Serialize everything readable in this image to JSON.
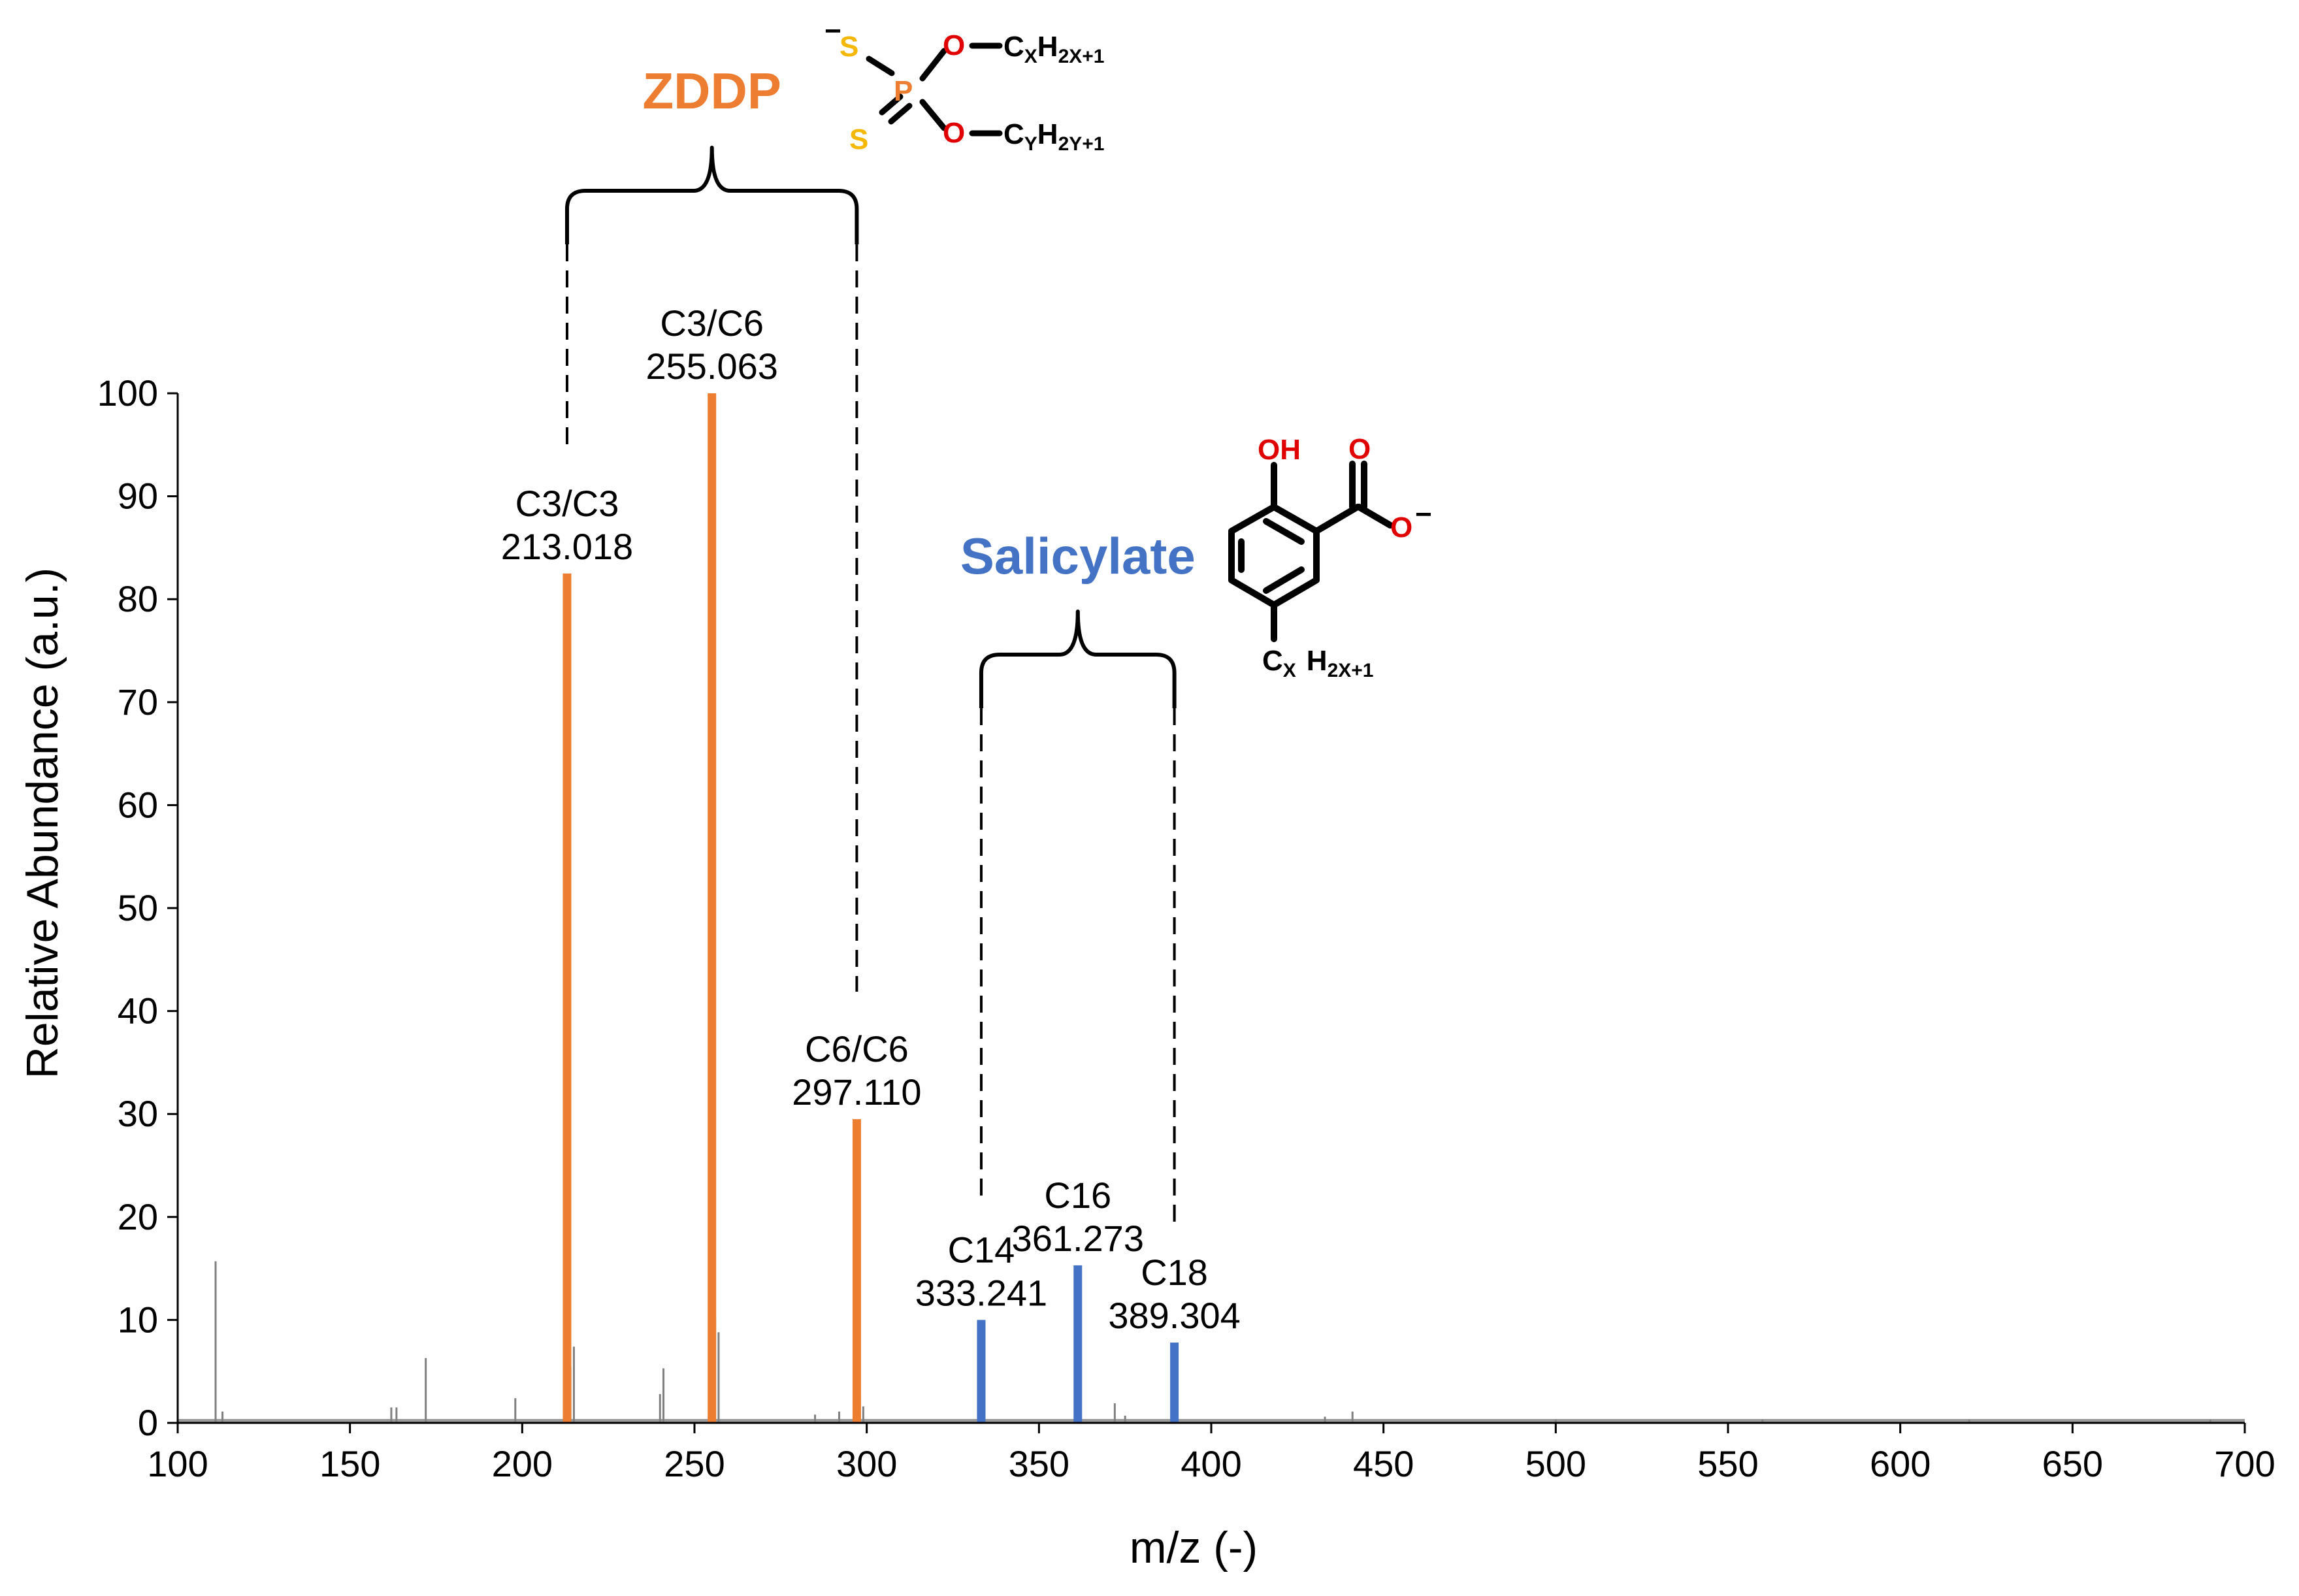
{
  "chart_data": {
    "type": "bar",
    "xlabel": "m/z (-)",
    "ylabel": "Relative Abundance (a.u.)",
    "xlim": [
      100,
      700
    ],
    "ylim": [
      0,
      100
    ],
    "xticks": [
      "100",
      "150",
      "200",
      "250",
      "300",
      "350",
      "400",
      "450",
      "500",
      "550",
      "600",
      "650",
      "700"
    ],
    "yticks": [
      "0",
      "10",
      "20",
      "30",
      "40",
      "50",
      "60",
      "70",
      "80",
      "90",
      "100"
    ],
    "grid": false,
    "colors": {
      "zddp": "#ED7D31",
      "salicylate": "#4472C4",
      "minor": "#808080"
    },
    "groups": [
      {
        "label": "ZDDP",
        "color": "#ED7D31",
        "span": [
          213.018,
          297.11
        ],
        "peaks": [
          {
            "name": "C3/C3",
            "mz": 213.018,
            "mz_label": "213.018",
            "abundance": 82.5
          },
          {
            "name": "C3/C6",
            "mz": 255.063,
            "mz_label": "255.063",
            "abundance": 100
          },
          {
            "name": "C6/C6",
            "mz": 297.11,
            "mz_label": "297.110",
            "abundance": 29.5
          }
        ]
      },
      {
        "label": "Salicylate",
        "color": "#4472C4",
        "span": [
          333.241,
          389.304
        ],
        "peaks": [
          {
            "name": "C14",
            "mz": 333.241,
            "mz_label": "333.241",
            "abundance": 10
          },
          {
            "name": "C16",
            "mz": 361.273,
            "mz_label": "361.273",
            "abundance": 15.3
          },
          {
            "name": "C18",
            "mz": 389.304,
            "mz_label": "389.304",
            "abundance": 7.8
          }
        ]
      }
    ],
    "minor_peaks": [
      {
        "mz": 111,
        "abundance": 15.7
      },
      {
        "mz": 113,
        "abundance": 1.1
      },
      {
        "mz": 162,
        "abundance": 1.5
      },
      {
        "mz": 163.5,
        "abundance": 1.5
      },
      {
        "mz": 172,
        "abundance": 6.3
      },
      {
        "mz": 198,
        "abundance": 2.4
      },
      {
        "mz": 214,
        "abundance": 5.5
      },
      {
        "mz": 215,
        "abundance": 7.4
      },
      {
        "mz": 240,
        "abundance": 2.8
      },
      {
        "mz": 241,
        "abundance": 5.3
      },
      {
        "mz": 256,
        "abundance": 10.2
      },
      {
        "mz": 257,
        "abundance": 8.8
      },
      {
        "mz": 285,
        "abundance": 0.8
      },
      {
        "mz": 292,
        "abundance": 1.1
      },
      {
        "mz": 298,
        "abundance": 2.8
      },
      {
        "mz": 299,
        "abundance": 1.6
      },
      {
        "mz": 334,
        "abundance": 1.4
      },
      {
        "mz": 362,
        "abundance": 3.0
      },
      {
        "mz": 372,
        "abundance": 1.9
      },
      {
        "mz": 375,
        "abundance": 0.7
      },
      {
        "mz": 390,
        "abundance": 1.3
      },
      {
        "mz": 433,
        "abundance": 0.6
      },
      {
        "mz": 441,
        "abundance": 1.1
      },
      {
        "mz": 500,
        "abundance": 0.3
      },
      {
        "mz": 560,
        "abundance": 0.3
      },
      {
        "mz": 620,
        "abundance": 0.3
      },
      {
        "mz": 690,
        "abundance": 0.3
      }
    ]
  },
  "structures": {
    "zddp": {
      "atoms": {
        "s1": "S",
        "s2": "S",
        "p": "P",
        "o1": "O",
        "o2": "O",
        "charge": "−"
      },
      "chain_top": {
        "c": "C",
        "c_sub": "X",
        "h": "H",
        "h_sub": "2X+1"
      },
      "chain_bottom": {
        "c": "C",
        "c_sub": "Y",
        "h": "H",
        "h_sub": "2Y+1"
      },
      "atom_colors": {
        "S": "#F5B800",
        "P": "#ED7D31",
        "O": "#E00000"
      }
    },
    "salicylate": {
      "hydroxyl": "OH",
      "carbonyl_o": "O",
      "carboxylate_o": "O",
      "charge": "−",
      "chain": {
        "c": "C",
        "c_sub": "X",
        "h": "H",
        "h_sub": "2X+1"
      },
      "atom_colors": {
        "O": "#E00000"
      }
    }
  }
}
